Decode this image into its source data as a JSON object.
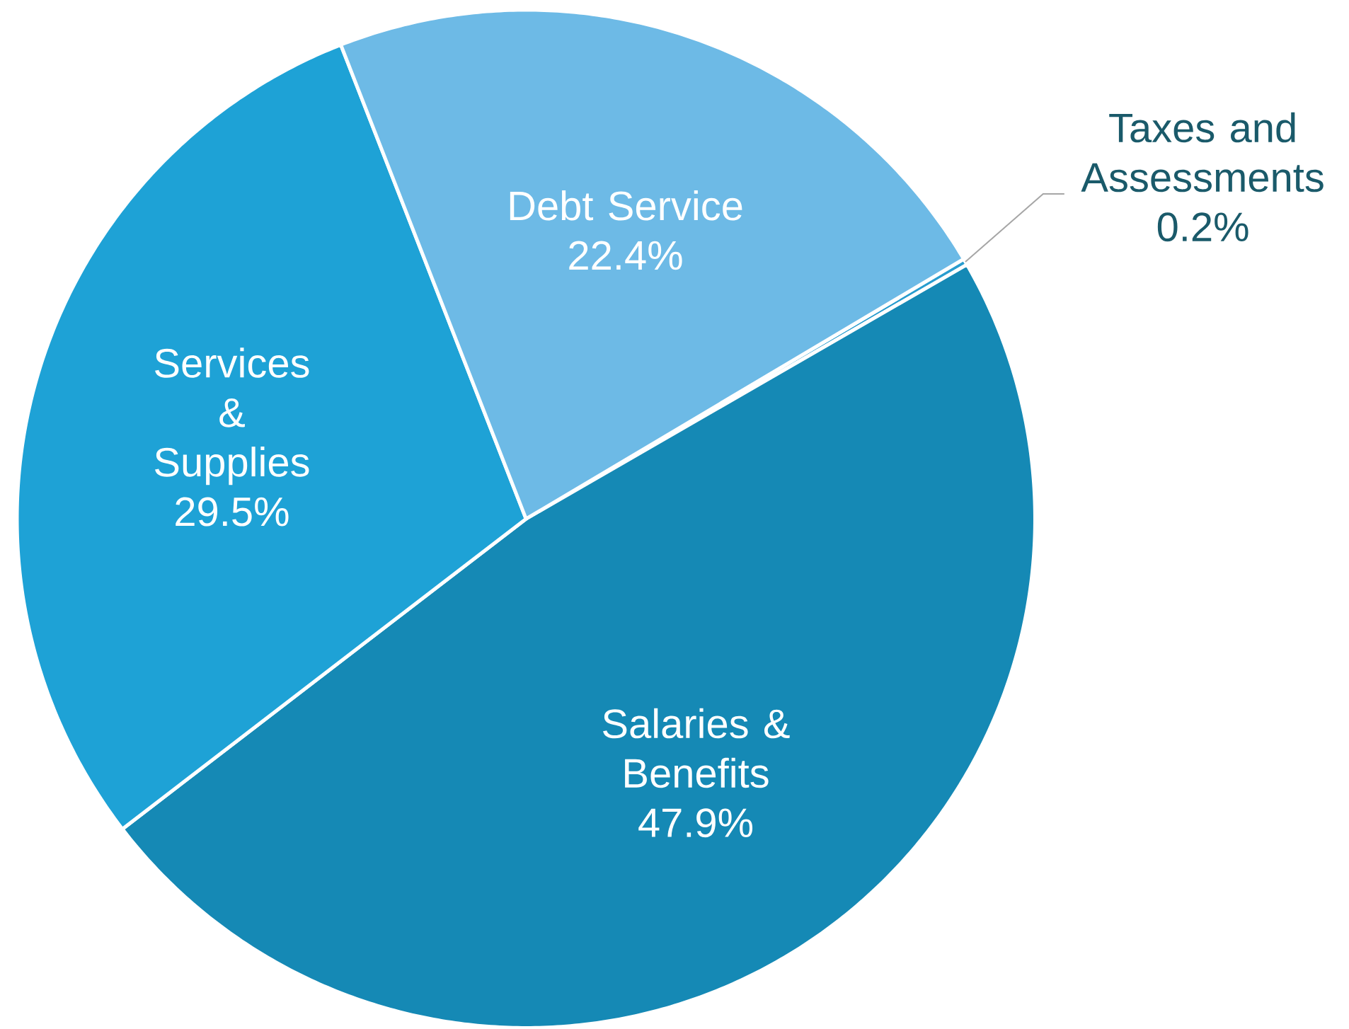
{
  "chart_data": {
    "type": "pie",
    "categories": [
      "Taxes and Assessments",
      "Salaries & Benefits",
      "Services & Supplies",
      "Debt Service"
    ],
    "values": [
      0.2,
      47.9,
      29.5,
      22.4
    ],
    "colors": [
      "#2a9dcf",
      "#1589b5",
      "#1ea2d6",
      "#6dbae6"
    ],
    "value_labels": [
      "0.2%",
      "47.9%",
      "29.5%",
      "22.4%"
    ]
  }
}
